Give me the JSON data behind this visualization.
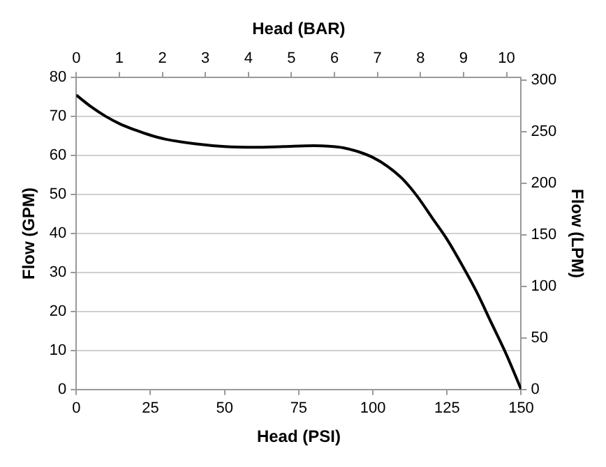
{
  "chart_data": {
    "type": "line",
    "xlabel": "Head (PSI)",
    "x2label": "Head (BAR)",
    "ylabel": "Flow (GPM)",
    "y2label": "Flow (LPM)",
    "x": [
      0,
      5,
      10,
      15,
      20,
      25,
      30,
      40,
      50,
      60,
      70,
      80,
      85,
      90,
      95,
      100,
      105,
      110,
      115,
      120,
      125,
      130,
      135,
      140,
      145,
      150
    ],
    "series": [
      {
        "color": "#000000",
        "values": [
          75.5,
          72.5,
          70,
          68,
          66.5,
          65.2,
          64.2,
          63,
          62.3,
          62.1,
          62.3,
          62.5,
          62.4,
          62,
          61,
          59.5,
          57.2,
          54,
          49.5,
          44,
          38.5,
          32,
          25,
          17,
          9,
          0
        ]
      }
    ],
    "xlim": [
      0,
      150
    ],
    "xticks": [
      0,
      25,
      50,
      75,
      100,
      125,
      150
    ],
    "x2lim": [
      0,
      10.34
    ],
    "x2ticks": [
      0,
      1,
      2,
      3,
      4,
      5,
      6,
      7,
      8,
      9,
      10
    ],
    "ylim": [
      0,
      80
    ],
    "yticks": [
      0,
      10,
      20,
      30,
      40,
      50,
      60,
      70,
      80
    ],
    "y2lim": [
      0,
      302.8
    ],
    "y2ticks": [
      0,
      50,
      100,
      150,
      200,
      250,
      300
    ],
    "grid": "y",
    "legend": false,
    "marker": "none",
    "line_style": "solid"
  }
}
